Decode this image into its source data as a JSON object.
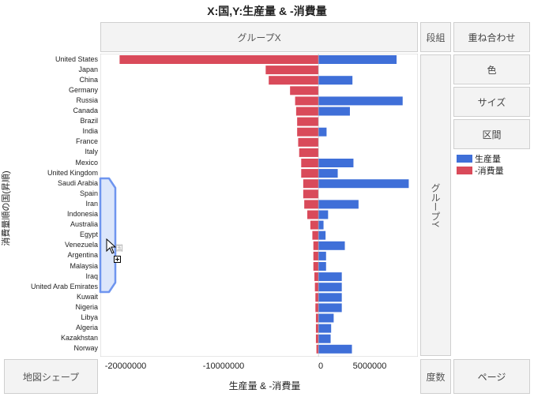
{
  "title": "X:国,Y:生産量 & -消費量",
  "zones": {
    "group_x": "グループX",
    "group_y": "グループY",
    "wrap": "段組",
    "overlay": "重ね合わせ",
    "color": "色",
    "size": "サイズ",
    "interval": "区間",
    "map_shape": "地図シェープ",
    "freq": "度数",
    "page": "ページ"
  },
  "axis": {
    "xlabel": "生産量 & -消費量",
    "ylabel": "消費量順の国(昇順)",
    "x_ticks": [
      "-20000000",
      "-10000000",
      "0",
      "5000000"
    ]
  },
  "legend": [
    {
      "label": "生産量",
      "color": "#3f6fd8"
    },
    {
      "label": "-消費量",
      "color": "#d94a5a"
    }
  ],
  "drag_hint": "国",
  "chart_data": {
    "type": "bar",
    "orientation": "horizontal",
    "categories": [
      "United States",
      "Japan",
      "China",
      "Germany",
      "Russia",
      "Canada",
      "Brazil",
      "India",
      "France",
      "Italy",
      "Mexico",
      "United Kingdom",
      "Saudi Arabia",
      "Spain",
      "Iran",
      "Indonesia",
      "Australia",
      "Egypt",
      "Venezuela",
      "Argentina",
      "Malaysia",
      "Iraq",
      "United Arab Emirates",
      "Kuwait",
      "Nigeria",
      "Libya",
      "Algeria",
      "Kazakhstan",
      "Norway"
    ],
    "series": [
      {
        "name": "生産量",
        "color": "#3f6fd8",
        "values": [
          7700000,
          0,
          3350000,
          0,
          8300000,
          3100000,
          0,
          800000,
          0,
          0,
          3450000,
          1900000,
          8900000,
          0,
          3950000,
          950000,
          500000,
          700000,
          2600000,
          750000,
          750000,
          2300000,
          2300000,
          2300000,
          2300000,
          1500000,
          1250000,
          1200000,
          3300000
        ]
      },
      {
        "name": "-消費量",
        "color": "#d94a5a",
        "values": [
          -19600000,
          -5200000,
          -4900000,
          -2800000,
          -2300000,
          -2200000,
          -2100000,
          -2100000,
          -2000000,
          -1900000,
          -1700000,
          -1700000,
          -1500000,
          -1500000,
          -1400000,
          -1100000,
          -800000,
          -600000,
          -500000,
          -500000,
          -500000,
          -400000,
          -350000,
          -300000,
          -300000,
          -250000,
          -250000,
          -250000,
          -200000
        ]
      }
    ],
    "xlim": [
      -21500000,
      9800000
    ],
    "xlabel": "生産量 & -消費量",
    "ylabel": "消費量順の国(昇順)",
    "legend_position": "right"
  }
}
